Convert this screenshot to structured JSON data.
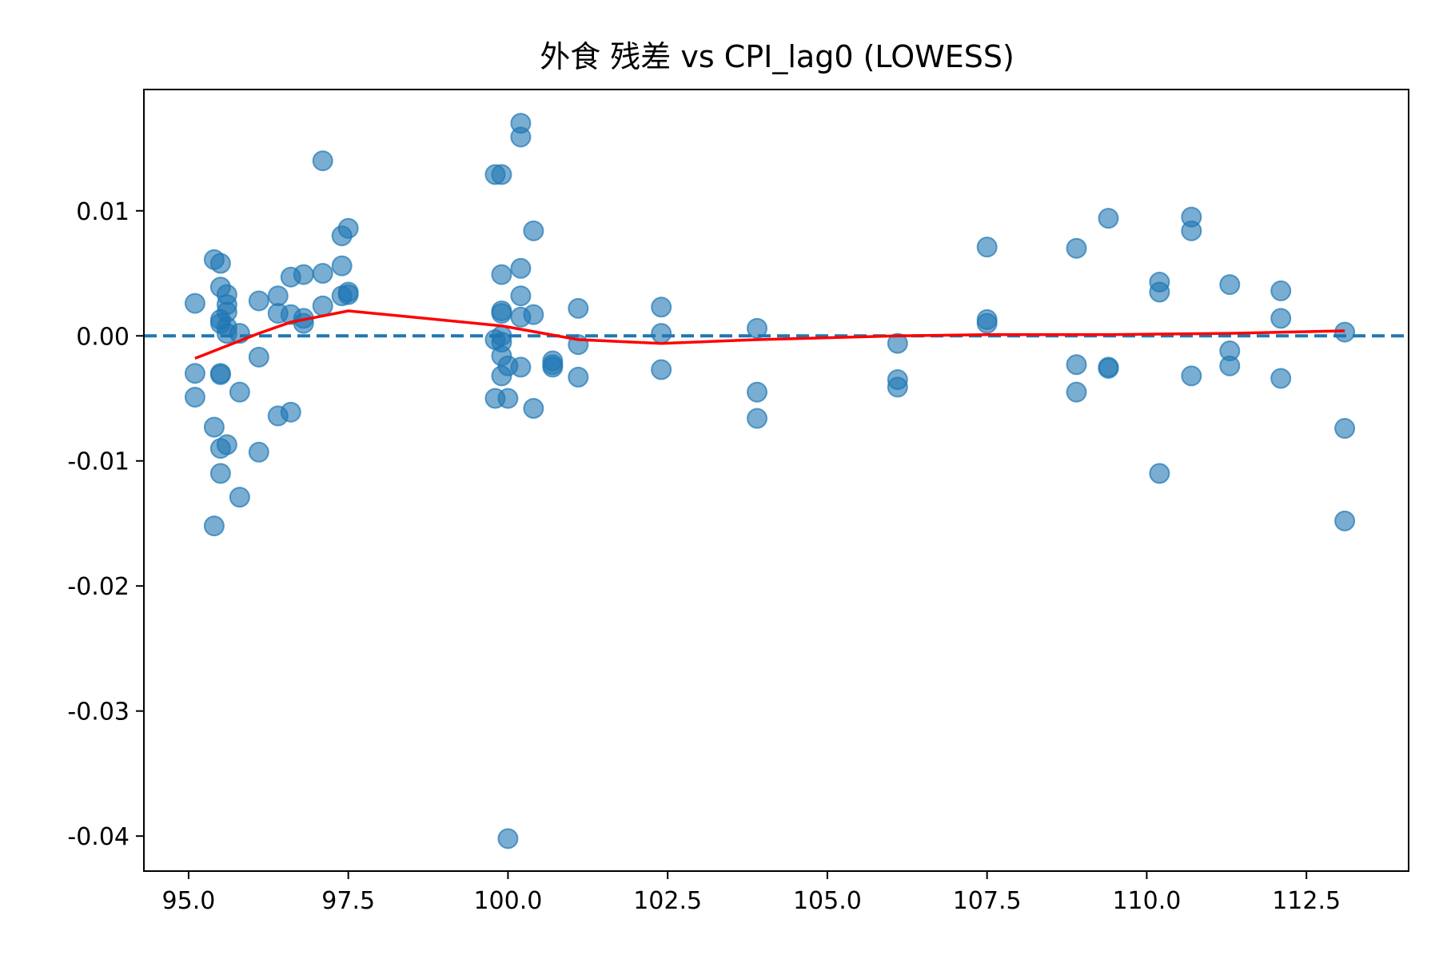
{
  "chart_data": {
    "type": "scatter",
    "title": "外食 残差 vs CPI_lag0 (LOWESS)",
    "xlabel": "",
    "ylabel": "",
    "xlim": [
      94.3,
      114.1
    ],
    "ylim": [
      -0.0428,
      0.0197
    ],
    "grid": false,
    "x_ticks": [
      95.0,
      97.5,
      100.0,
      102.5,
      105.0,
      107.5,
      110.0,
      112.5
    ],
    "x_tick_labels": [
      "95.0",
      "97.5",
      "100.0",
      "102.5",
      "105.0",
      "107.5",
      "110.0",
      "112.5"
    ],
    "y_ticks": [
      0.01,
      0.0,
      -0.01,
      -0.02,
      -0.03,
      -0.04
    ],
    "y_tick_labels": [
      "0.01",
      "0.00",
      "-0.01",
      "-0.02",
      "-0.03",
      "-0.04"
    ],
    "reference_line": {
      "y": 0.0,
      "style": "dashed",
      "color": "#1f77b4"
    },
    "colors": {
      "points": "#1f77b4",
      "lowess": "#ff0000"
    },
    "points": [
      [
        95.1,
        0.0026
      ],
      [
        95.1,
        -0.003
      ],
      [
        95.1,
        -0.0049
      ],
      [
        95.4,
        0.0061
      ],
      [
        95.4,
        -0.0073
      ],
      [
        95.4,
        -0.0152
      ],
      [
        95.5,
        0.0058
      ],
      [
        95.5,
        0.0039
      ],
      [
        95.5,
        0.0013
      ],
      [
        95.5,
        0.001
      ],
      [
        95.5,
        -0.003
      ],
      [
        95.5,
        -0.0031
      ],
      [
        95.5,
        -0.009
      ],
      [
        95.5,
        -0.011
      ],
      [
        95.6,
        0.0033
      ],
      [
        95.6,
        0.0025
      ],
      [
        95.6,
        0.0019
      ],
      [
        95.6,
        0.0007
      ],
      [
        95.6,
        0.0002
      ],
      [
        95.6,
        -0.0087
      ],
      [
        95.8,
        0.0002
      ],
      [
        95.8,
        -0.0045
      ],
      [
        95.8,
        -0.0129
      ],
      [
        96.1,
        0.0028
      ],
      [
        96.1,
        -0.0017
      ],
      [
        96.1,
        -0.0093
      ],
      [
        96.4,
        0.0032
      ],
      [
        96.4,
        0.0018
      ],
      [
        96.4,
        -0.0064
      ],
      [
        96.6,
        0.0047
      ],
      [
        96.6,
        0.0017
      ],
      [
        96.6,
        -0.0061
      ],
      [
        96.8,
        0.0049
      ],
      [
        96.8,
        0.0014
      ],
      [
        96.8,
        0.001
      ],
      [
        97.1,
        0.014
      ],
      [
        97.1,
        0.005
      ],
      [
        97.1,
        0.0024
      ],
      [
        97.4,
        0.008
      ],
      [
        97.4,
        0.0056
      ],
      [
        97.4,
        0.0032
      ],
      [
        97.5,
        0.0086
      ],
      [
        97.5,
        0.0035
      ],
      [
        97.5,
        0.0033
      ],
      [
        99.8,
        0.0129
      ],
      [
        99.8,
        -0.0003
      ],
      [
        99.8,
        -0.005
      ],
      [
        99.9,
        0.0129
      ],
      [
        99.9,
        0.0049
      ],
      [
        99.9,
        0.002
      ],
      [
        99.9,
        0.0018
      ],
      [
        99.9,
        0.0
      ],
      [
        99.9,
        -0.0005
      ],
      [
        99.9,
        -0.0016
      ],
      [
        99.9,
        -0.0032
      ],
      [
        100.0,
        -0.0024
      ],
      [
        100.0,
        -0.005
      ],
      [
        100.0,
        -0.0402
      ],
      [
        100.2,
        0.017
      ],
      [
        100.2,
        0.0159
      ],
      [
        100.2,
        0.0054
      ],
      [
        100.2,
        0.0032
      ],
      [
        100.2,
        0.0015
      ],
      [
        100.2,
        -0.0025
      ],
      [
        100.4,
        0.0084
      ],
      [
        100.4,
        0.0017
      ],
      [
        100.4,
        -0.0058
      ],
      [
        100.7,
        -0.002
      ],
      [
        100.7,
        -0.0023
      ],
      [
        100.7,
        -0.0025
      ],
      [
        101.1,
        0.0022
      ],
      [
        101.1,
        -0.0007
      ],
      [
        101.1,
        -0.0033
      ],
      [
        102.4,
        0.0023
      ],
      [
        102.4,
        0.0002
      ],
      [
        102.4,
        -0.0027
      ],
      [
        103.9,
        0.0006
      ],
      [
        103.9,
        -0.0045
      ],
      [
        103.9,
        -0.0066
      ],
      [
        106.1,
        -0.0006
      ],
      [
        106.1,
        -0.0035
      ],
      [
        106.1,
        -0.0041
      ],
      [
        107.5,
        0.0071
      ],
      [
        107.5,
        0.0013
      ],
      [
        107.5,
        0.001
      ],
      [
        108.9,
        0.007
      ],
      [
        108.9,
        -0.0023
      ],
      [
        108.9,
        -0.0045
      ],
      [
        109.4,
        0.0094
      ],
      [
        109.4,
        -0.0025
      ],
      [
        109.4,
        -0.0026
      ],
      [
        110.2,
        0.0043
      ],
      [
        110.2,
        0.0035
      ],
      [
        110.2,
        -0.011
      ],
      [
        110.7,
        0.0095
      ],
      [
        110.7,
        0.0084
      ],
      [
        110.7,
        -0.0032
      ],
      [
        111.3,
        0.0041
      ],
      [
        111.3,
        -0.0012
      ],
      [
        111.3,
        -0.0024
      ],
      [
        112.1,
        0.0036
      ],
      [
        112.1,
        0.0014
      ],
      [
        112.1,
        -0.0034
      ],
      [
        113.1,
        0.0003
      ],
      [
        113.1,
        -0.0074
      ],
      [
        113.1,
        -0.0148
      ]
    ],
    "lowess": [
      [
        95.1,
        -0.0018
      ],
      [
        95.6,
        -0.0008
      ],
      [
        96.1,
        0.0002
      ],
      [
        96.6,
        0.0011
      ],
      [
        97.5,
        0.002
      ],
      [
        99.9,
        0.0008
      ],
      [
        101.1,
        -0.0003
      ],
      [
        102.4,
        -0.0006
      ],
      [
        103.9,
        -0.0003
      ],
      [
        106.1,
        0.0
      ],
      [
        107.5,
        0.0001
      ],
      [
        109.4,
        0.0001
      ],
      [
        111.3,
        0.0002
      ],
      [
        113.1,
        0.0004
      ]
    ]
  }
}
